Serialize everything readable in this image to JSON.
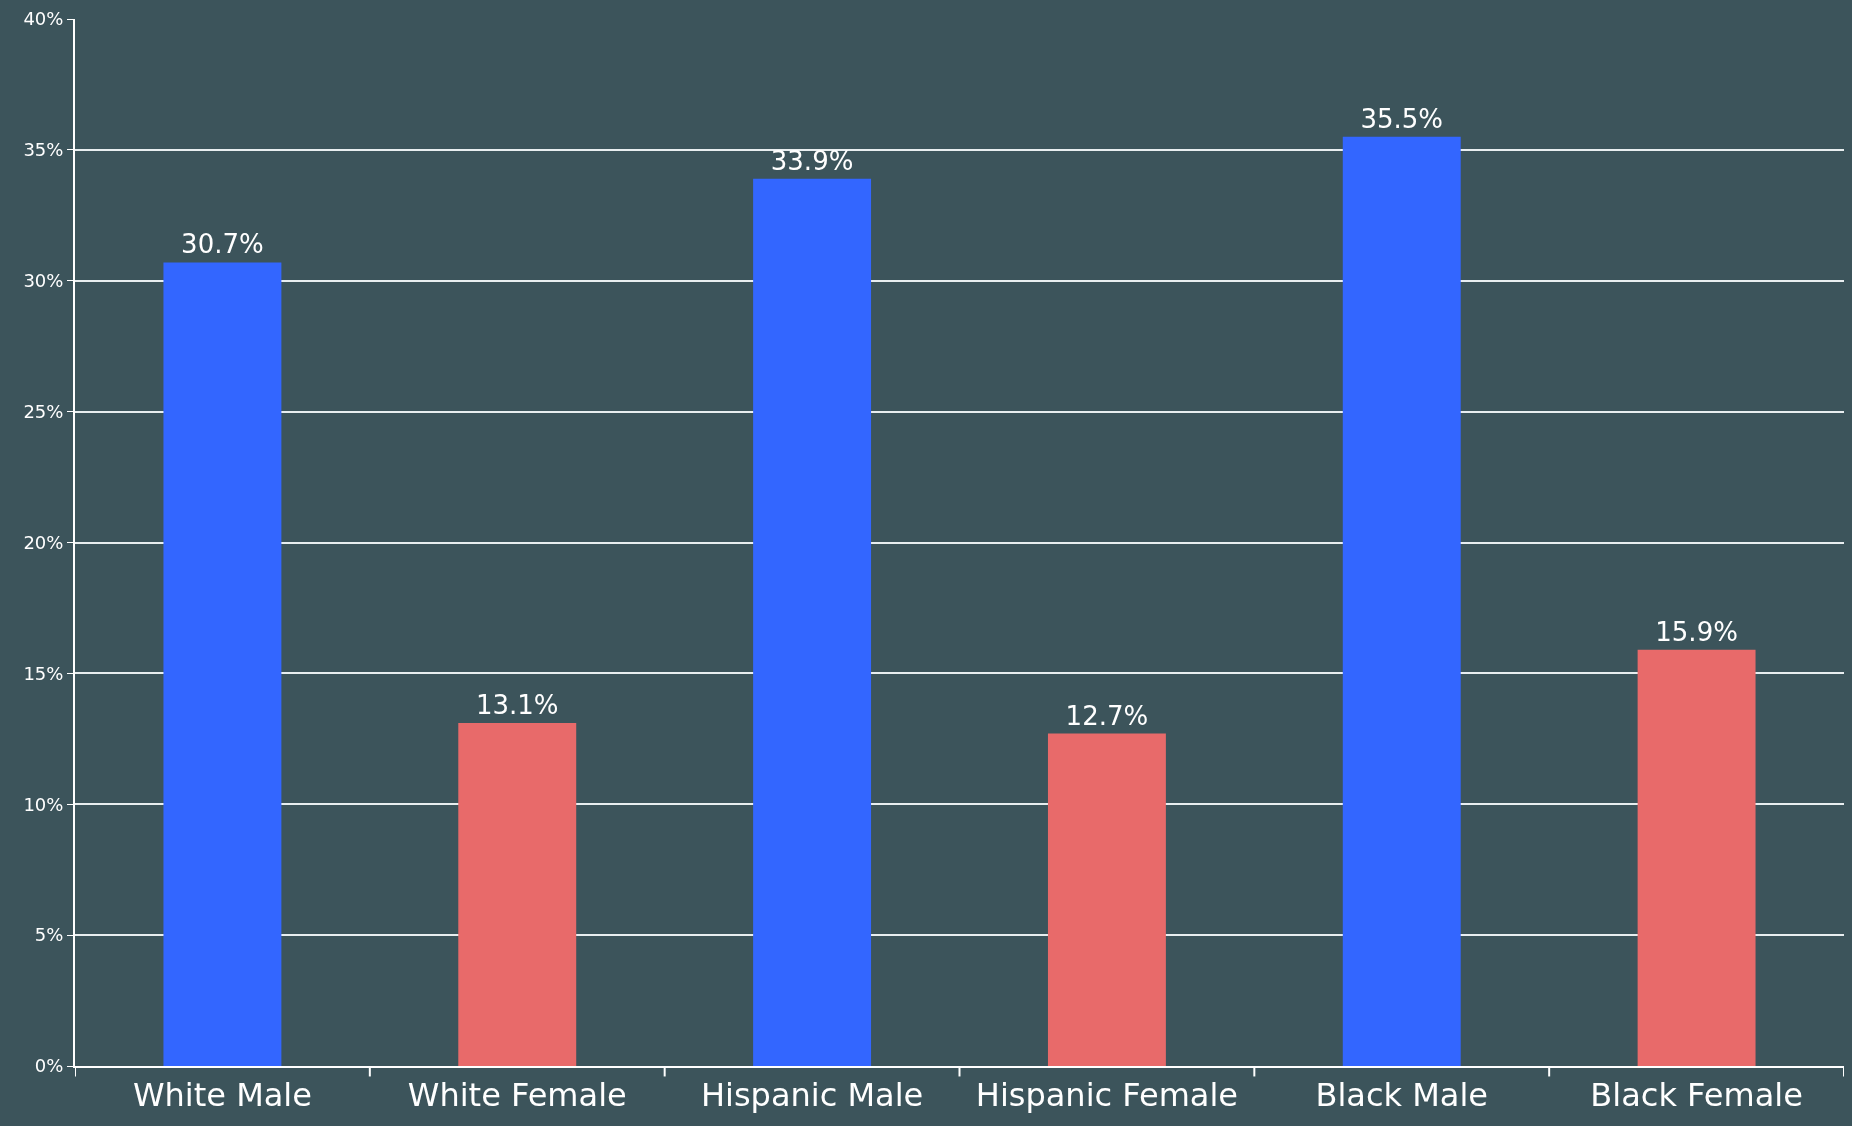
{
  "chart_data": {
    "type": "bar",
    "categories": [
      "White Male",
      "White Female",
      "Hispanic Male",
      "Hispanic Female",
      "Black Male",
      "Black Female"
    ],
    "values": [
      30.7,
      13.1,
      33.9,
      12.7,
      35.5,
      15.9
    ],
    "colors": [
      "#3366ff",
      "#e86a6a",
      "#3366ff",
      "#e86a6a",
      "#3366ff",
      "#e86a6a"
    ],
    "value_labels": [
      "30.7%",
      "13.1%",
      "33.9%",
      "12.7%",
      "35.5%",
      "15.9%"
    ],
    "ylim": [
      0,
      40
    ],
    "yticks": [
      {
        "value": 0,
        "label": "0%"
      },
      {
        "value": 5,
        "label": "5%"
      },
      {
        "value": 10,
        "label": "10%"
      },
      {
        "value": 15,
        "label": "15%"
      },
      {
        "value": 20,
        "label": "20%"
      },
      {
        "value": 25,
        "label": "25%"
      },
      {
        "value": 30,
        "label": "30%"
      },
      {
        "value": 35,
        "label": "35%"
      },
      {
        "value": 40,
        "label": "40%"
      }
    ],
    "grid": "y"
  }
}
